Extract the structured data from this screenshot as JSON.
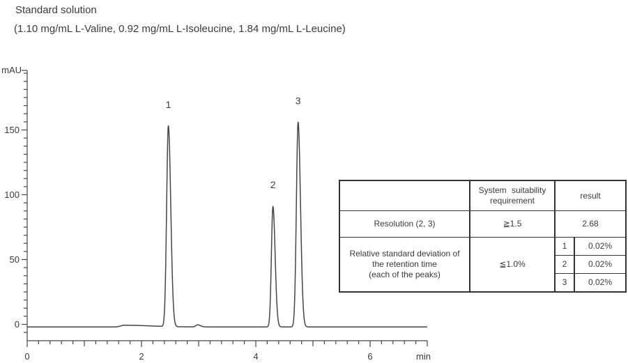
{
  "title": "Standard solution",
  "subtitle": "(1.10 mg/mL L-Valine, 0.92 mg/mL L-Isoleucine, 1.84 mg/mL L-Leucine)",
  "colors": {
    "line": "#454545",
    "axis": "#454545",
    "text": "#3a3a3a",
    "table_border": "#333333"
  },
  "chart_data": {
    "type": "line",
    "title": "Standard solution",
    "xlabel": "min",
    "ylabel": "mAU",
    "xlim": [
      0,
      7.0
    ],
    "ylim": [
      -12.5,
      196
    ],
    "x_ticks": [
      0,
      2,
      4,
      6
    ],
    "x_tick_labels": [
      "0",
      "2",
      "4",
      "6"
    ],
    "x_minor_step": 0.2,
    "y_ticks": [
      0,
      50,
      100,
      150
    ],
    "y_tick_labels": [
      "0",
      "50",
      "100",
      "150"
    ],
    "y_minor_step": 6.25,
    "grid": false,
    "baseline_mau": -2,
    "peaks": [
      {
        "label": "1",
        "rt_min": 2.47,
        "apex_mau": 153,
        "sigma_left_min": 0.03,
        "sigma_right_min": 0.042
      },
      {
        "label": "2",
        "rt_min": 4.3,
        "apex_mau": 91,
        "sigma_left_min": 0.027,
        "sigma_right_min": 0.038
      },
      {
        "label": "3",
        "rt_min": 4.74,
        "apex_mau": 156,
        "sigma_left_min": 0.03,
        "sigma_right_min": 0.042
      }
    ],
    "baseline_bumps": [
      {
        "rt_min": 1.7,
        "height_mau": 1.3,
        "sigma_left_min": 0.06,
        "sigma_right_min": 0.45
      },
      {
        "rt_min": 2.98,
        "height_mau": 1.6,
        "sigma_left_min": 0.03,
        "sigma_right_min": 0.05
      }
    ]
  },
  "table": {
    "header": {
      "blank": "",
      "requirement": "System suitability requirement",
      "result": "result"
    },
    "resolution_row": {
      "name": "Resolution (2, 3)",
      "requirement": "≧1.5",
      "result": "2.68"
    },
    "rsd_row": {
      "name_lines": [
        "Relative standard deviation of",
        "the retention time",
        "(each of the peaks)"
      ],
      "requirement": "≦1.0%",
      "results": [
        {
          "peak": "1",
          "value": "0.02%"
        },
        {
          "peak": "2",
          "value": "0.02%"
        },
        {
          "peak": "3",
          "value": "0.02%"
        }
      ]
    }
  }
}
